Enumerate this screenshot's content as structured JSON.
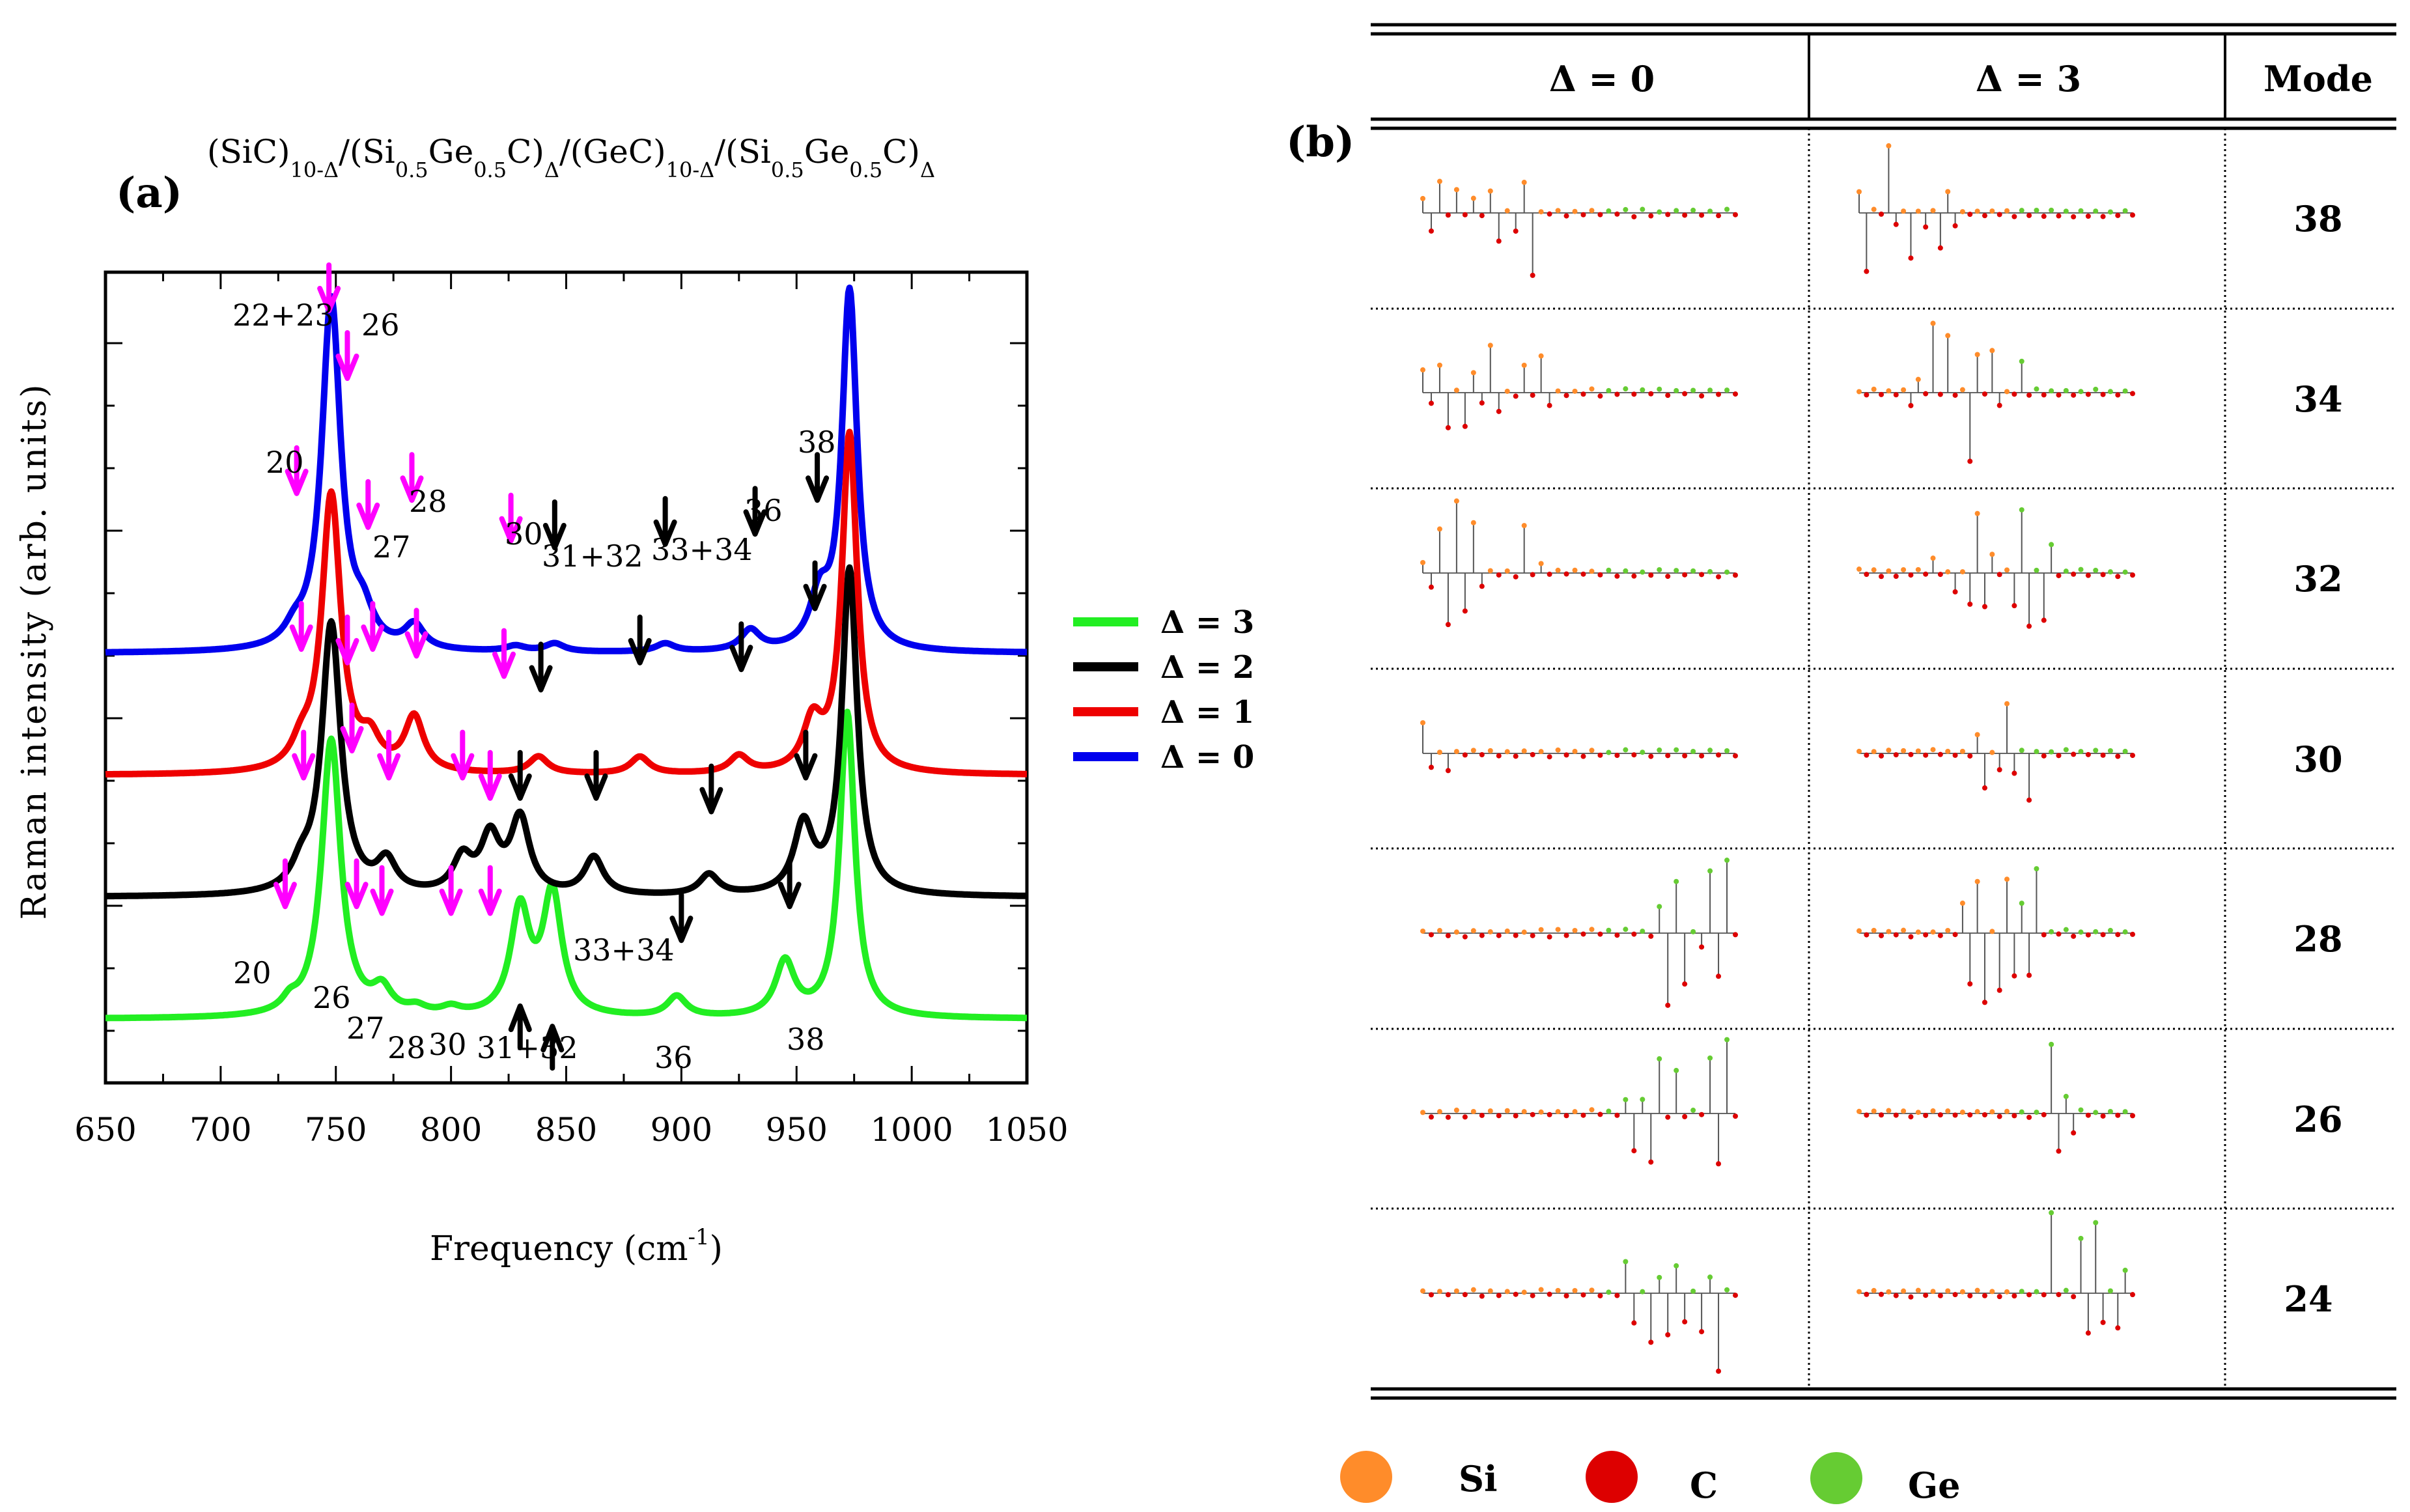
{
  "panel_a": {
    "label": "(a)",
    "title": {
      "p1": "(SiC)",
      "s1": "10-Δ",
      "p2": "/(Si",
      "s2": "0.5",
      "p3": "Ge",
      "s3": "0.5",
      "p4": "C)",
      "s4": "Δ",
      "p5": "/(GeC)",
      "s5": "10-Δ",
      "p6": "/(Si",
      "s6": "0.5",
      "p7": "Ge",
      "s7": "0.5",
      "p8": "C)",
      "s8": "Δ"
    },
    "ylabel": "Raman intensity (arb. units)",
    "xlabel_main": "Frequency (cm",
    "xlabel_sup": "-1",
    "xlabel_end": ")"
  },
  "chart_data": {
    "type": "line",
    "x_range": [
      650,
      1050
    ],
    "x_ticks": [
      "650",
      "700",
      "750",
      "800",
      "850",
      "900",
      "950",
      "1000",
      "1050"
    ],
    "xlabel": "Frequency (cm-1)",
    "ylabel": "Raman intensity (arb. units)",
    "y_range": [
      0,
      11
    ],
    "series": [
      {
        "name": "Δ = 3",
        "color": "#22ee22",
        "offset": 0.0,
        "peaks": [
          [
            730,
            0.15,
            4
          ],
          [
            748,
            4.1,
            5
          ],
          [
            770,
            0.35,
            5
          ],
          [
            785,
            0.1,
            5
          ],
          [
            800,
            0.1,
            5
          ],
          [
            830,
            1.55,
            5
          ],
          [
            844,
            1.8,
            5
          ],
          [
            898,
            0.3,
            5
          ],
          [
            945,
            0.8,
            5
          ],
          [
            972,
            4.5,
            4
          ]
        ]
      },
      {
        "name": "Δ = 2",
        "color": "#000000",
        "offset": 1.8,
        "peaks": [
          [
            735,
            0.3,
            5
          ],
          [
            748,
            4.0,
            5
          ],
          [
            772,
            0.45,
            5
          ],
          [
            805,
            0.5,
            5
          ],
          [
            817,
            0.8,
            5
          ],
          [
            830,
            1.1,
            5
          ],
          [
            862,
            0.55,
            5
          ],
          [
            912,
            0.3,
            5
          ],
          [
            953,
            1.0,
            5
          ],
          [
            973,
            4.8,
            4
          ]
        ]
      },
      {
        "name": "Δ = 1",
        "color": "#ee0000",
        "offset": 3.6,
        "peaks": [
          [
            735,
            0.3,
            5
          ],
          [
            748,
            4.1,
            5
          ],
          [
            765,
            0.4,
            5
          ],
          [
            784,
            0.8,
            5
          ],
          [
            838,
            0.25,
            5
          ],
          [
            882,
            0.25,
            5
          ],
          [
            925,
            0.25,
            5
          ],
          [
            957,
            0.7,
            5
          ],
          [
            973,
            5.0,
            4
          ]
        ]
      },
      {
        "name": "Δ = 0",
        "color": "#0000ee",
        "offset": 5.4,
        "peaks": [
          [
            732,
            0.2,
            5
          ],
          [
            748,
            5.2,
            5
          ],
          [
            762,
            0.4,
            5
          ],
          [
            784,
            0.35,
            5
          ],
          [
            828,
            0.08,
            5
          ],
          [
            845,
            0.12,
            5
          ],
          [
            893,
            0.12,
            5
          ],
          [
            930,
            0.3,
            5
          ],
          [
            960,
            0.7,
            5
          ],
          [
            973,
            5.3,
            4
          ]
        ]
      }
    ],
    "peak_labels": [
      "22+23",
      "26",
      "20",
      "28",
      "27",
      "30",
      "31+32",
      "33+34",
      "36",
      "38",
      "20",
      "26",
      "27",
      "28",
      "30",
      "31+32",
      "33+34",
      "36",
      "38"
    ],
    "arrows": [
      {
        "x": 747,
        "y": 10.5,
        "color": "#ff00ff"
      },
      {
        "x": 755,
        "y": 9.5,
        "color": "#ff00ff"
      },
      {
        "x": 733,
        "y": 7.8,
        "color": "#ff00ff"
      },
      {
        "x": 783,
        "y": 7.7,
        "color": "#ff00ff"
      },
      {
        "x": 764,
        "y": 7.3,
        "color": "#ff00ff"
      },
      {
        "x": 826,
        "y": 7.1,
        "color": "#ff00ff"
      },
      {
        "x": 845,
        "y": 7.0,
        "color": "#000000"
      },
      {
        "x": 893,
        "y": 7.05,
        "color": "#000000"
      },
      {
        "x": 932,
        "y": 7.2,
        "color": "#000000"
      },
      {
        "x": 959,
        "y": 7.7,
        "color": "#000000"
      },
      {
        "x": 735,
        "y": 5.5,
        "color": "#ff00ff"
      },
      {
        "x": 755,
        "y": 5.3,
        "color": "#ff00ff"
      },
      {
        "x": 766,
        "y": 5.5,
        "color": "#ff00ff"
      },
      {
        "x": 785,
        "y": 5.4,
        "color": "#ff00ff"
      },
      {
        "x": 823,
        "y": 5.1,
        "color": "#ff00ff"
      },
      {
        "x": 839,
        "y": 4.9,
        "color": "#000000"
      },
      {
        "x": 882,
        "y": 5.3,
        "color": "#000000"
      },
      {
        "x": 926,
        "y": 5.2,
        "color": "#000000"
      },
      {
        "x": 958,
        "y": 6.1,
        "color": "#000000"
      },
      {
        "x": 736,
        "y": 3.6,
        "color": "#ff00ff"
      },
      {
        "x": 757,
        "y": 4.0,
        "color": "#ff00ff"
      },
      {
        "x": 773,
        "y": 3.6,
        "color": "#ff00ff"
      },
      {
        "x": 805,
        "y": 3.6,
        "color": "#ff00ff"
      },
      {
        "x": 817,
        "y": 3.3,
        "color": "#ff00ff"
      },
      {
        "x": 830,
        "y": 3.3,
        "color": "#000000"
      },
      {
        "x": 863,
        "y": 3.3,
        "color": "#000000"
      },
      {
        "x": 913,
        "y": 3.1,
        "color": "#000000"
      },
      {
        "x": 954,
        "y": 3.6,
        "color": "#000000"
      },
      {
        "x": 728,
        "y": 1.7,
        "color": "#ff00ff"
      },
      {
        "x": 759,
        "y": 1.7,
        "color": "#ff00ff"
      },
      {
        "x": 770,
        "y": 1.6,
        "color": "#ff00ff"
      },
      {
        "x": 800,
        "y": 1.6,
        "color": "#ff00ff"
      },
      {
        "x": 817,
        "y": 1.6,
        "color": "#ff00ff"
      },
      {
        "x": 900,
        "y": 1.2,
        "color": "#000000"
      },
      {
        "x": 947,
        "y": 1.7,
        "color": "#000000"
      },
      {
        "x": 830,
        "y": -0.5,
        "color": "#000000",
        "up": true
      },
      {
        "x": 844,
        "y": -0.8,
        "color": "#000000",
        "up": true
      }
    ]
  },
  "legend": {
    "items": [
      {
        "label": "Δ = 3",
        "color": "#22ee22"
      },
      {
        "label": "Δ = 2",
        "color": "#000000"
      },
      {
        "label": "Δ = 1",
        "color": "#ee0000"
      },
      {
        "label": "Δ = 0",
        "color": "#0000ee"
      }
    ]
  },
  "panel_b": {
    "label": "(b)",
    "headers": {
      "col1": "Δ = 0",
      "col2": "Δ = 3",
      "col3": "Mode"
    },
    "modes": [
      "38",
      "34",
      "32",
      "30",
      "28",
      "26",
      "24"
    ]
  },
  "atom_legend": {
    "items": [
      {
        "label": "Si",
        "color": "#ff8c2a"
      },
      {
        "label": "C",
        "color": "#dd0000"
      },
      {
        "label": "Ge",
        "color": "#66cc33"
      }
    ]
  }
}
